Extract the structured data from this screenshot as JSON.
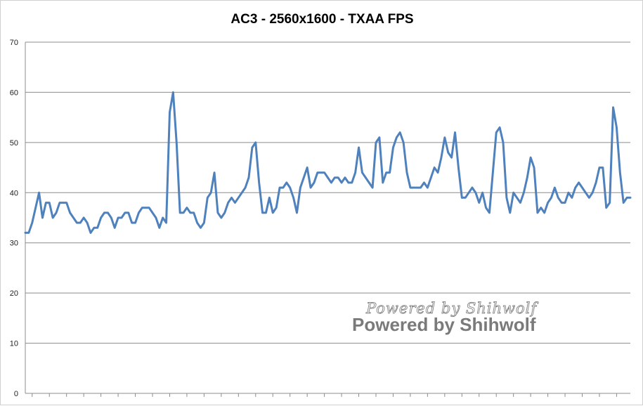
{
  "chart_data": {
    "type": "line",
    "title": "AC3 - 2560x1600 - TXAA  FPS",
    "xlabel": "",
    "ylabel": "",
    "ylim": [
      0,
      70
    ],
    "yticks": [
      0,
      10,
      20,
      30,
      40,
      50,
      60,
      70
    ],
    "grid": true,
    "legend": "none",
    "series_color": "#4f81bd",
    "series": [
      {
        "values": [
          32,
          32,
          34,
          37,
          40,
          35,
          38,
          38,
          35,
          36,
          38,
          38,
          38,
          36,
          35,
          34,
          34,
          35,
          34,
          32,
          33,
          33,
          35,
          36,
          36,
          35,
          33,
          35,
          35,
          36,
          36,
          34,
          34,
          36,
          37,
          37,
          37,
          36,
          35,
          33,
          35,
          34,
          56,
          60,
          50,
          36,
          36,
          37,
          36,
          36,
          34,
          33,
          34,
          39,
          40,
          44,
          36,
          35,
          36,
          38,
          39,
          38,
          39,
          40,
          41,
          43,
          49,
          50,
          42,
          36,
          36,
          39,
          36,
          37,
          41,
          41,
          42,
          41,
          39,
          36,
          41,
          43,
          45,
          41,
          42,
          44,
          44,
          44,
          43,
          42,
          43,
          43,
          42,
          43,
          42,
          42,
          44,
          49,
          44,
          43,
          42,
          41,
          50,
          51,
          42,
          44,
          44,
          49,
          51,
          52,
          50,
          44,
          41,
          41,
          41,
          41,
          42,
          41,
          43,
          45,
          44,
          47,
          51,
          48,
          47,
          52,
          45,
          39,
          39,
          40,
          41,
          40,
          38,
          40,
          37,
          36,
          44,
          52,
          53,
          50,
          39,
          36,
          40,
          39,
          38,
          40,
          43,
          47,
          45,
          36,
          37,
          36,
          38,
          39,
          41,
          39,
          38,
          38,
          40,
          39,
          41,
          42,
          41,
          40,
          39,
          40,
          42,
          45,
          45,
          37,
          38,
          57,
          53,
          44,
          38,
          39,
          39
        ]
      }
    ],
    "watermark": {
      "line1": "Powered  by  Shihwolf",
      "line2": "Powered by Shihwolf"
    }
  }
}
